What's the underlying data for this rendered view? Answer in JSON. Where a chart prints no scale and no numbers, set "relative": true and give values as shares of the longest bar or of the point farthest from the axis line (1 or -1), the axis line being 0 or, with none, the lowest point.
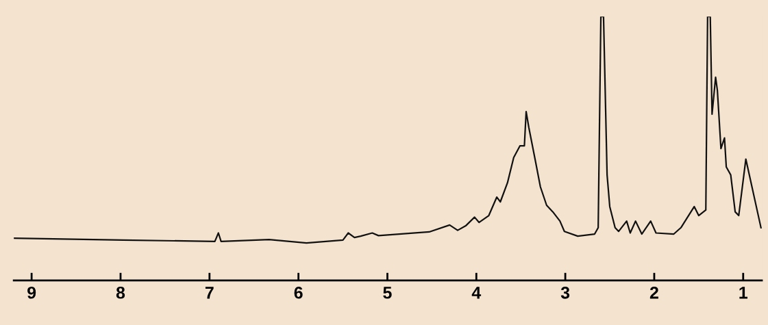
{
  "chart_data": {
    "type": "line",
    "relative": true,
    "xlim": [
      9.2,
      0.79
    ],
    "xticks": [
      9,
      8,
      7,
      6,
      5,
      4,
      3,
      2,
      1
    ],
    "grid": false,
    "legend": false,
    "marker": "none",
    "line_style": "solid",
    "series": [
      {
        "color": "#111111",
        "x": [
          9.2,
          7.97,
          6.94,
          6.9,
          6.87,
          6.33,
          5.91,
          5.5,
          5.44,
          5.37,
          5.3,
          5.17,
          5.1,
          4.53,
          4.3,
          4.21,
          4.12,
          4.02,
          3.97,
          3.86,
          3.77,
          3.73,
          3.65,
          3.58,
          3.51,
          3.46,
          3.44,
          3.41,
          3.34,
          3.28,
          3.21,
          3.14,
          3.06,
          3.01,
          2.86,
          2.67,
          2.63,
          2.6,
          2.57,
          2.53,
          2.5,
          2.44,
          2.4,
          2.31,
          2.27,
          2.21,
          2.14,
          2.04,
          1.98,
          1.78,
          1.7,
          1.55,
          1.5,
          1.42,
          1.4,
          1.37,
          1.35,
          1.31,
          1.29,
          1.25,
          1.21,
          1.19,
          1.14,
          1.09,
          1.05,
          0.97,
          0.8
        ],
        "values": [
          0.16,
          0.153,
          0.148,
          0.18,
          0.148,
          0.155,
          0.142,
          0.153,
          0.18,
          0.163,
          0.168,
          0.18,
          0.17,
          0.184,
          0.21,
          0.19,
          0.207,
          0.24,
          0.22,
          0.246,
          0.316,
          0.298,
          0.37,
          0.466,
          0.51,
          0.51,
          0.64,
          0.58,
          0.46,
          0.355,
          0.285,
          0.26,
          0.225,
          0.186,
          0.168,
          0.176,
          0.2,
          1,
          1,
          0.4,
          0.28,
          0.2,
          0.186,
          0.225,
          0.18,
          0.225,
          0.176,
          0.225,
          0.18,
          0.176,
          0.2,
          0.28,
          0.246,
          0.267,
          1,
          1,
          0.63,
          0.77,
          0.72,
          0.5,
          0.54,
          0.43,
          0.4,
          0.26,
          0.246,
          0.46,
          0.2
        ]
      }
    ]
  }
}
